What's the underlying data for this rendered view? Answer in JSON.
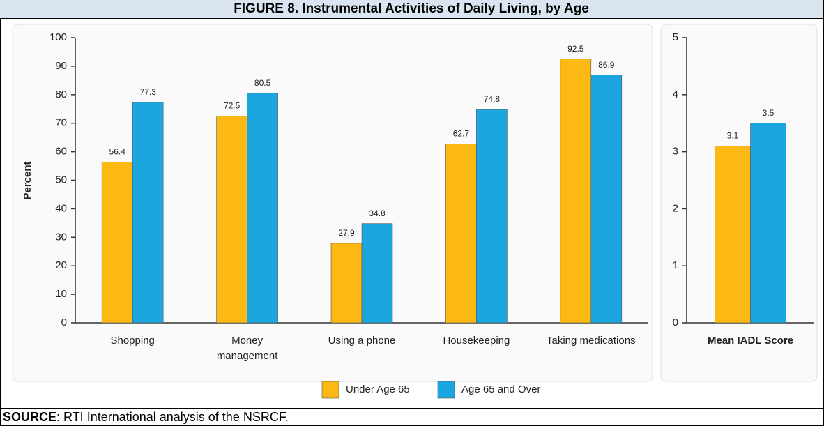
{
  "title": "FIGURE 8. Instrumental Activities of Daily Living, by Age",
  "source_label": "SOURCE",
  "source_text": ":  RTI International analysis of the NSRCF.",
  "chart_data": [
    {
      "type": "bar",
      "ylabel": "Percent",
      "categories": [
        "Shopping",
        "Money management",
        "Using a phone",
        "Housekeeping",
        "Taking medications"
      ],
      "series": [
        {
          "name": "Under Age 65",
          "color": "#fdb913",
          "values": [
            56.4,
            72.5,
            27.9,
            62.7,
            92.5
          ]
        },
        {
          "name": "Age 65 and Over",
          "color": "#1ba6e0",
          "values": [
            77.3,
            80.5,
            34.8,
            74.8,
            86.9
          ]
        }
      ],
      "ylim": [
        0,
        100
      ],
      "yticks": [
        0,
        10,
        20,
        30,
        40,
        50,
        60,
        70,
        80,
        90,
        100
      ],
      "legend": "bottom"
    },
    {
      "type": "bar",
      "categories": [
        "Mean IADL Score"
      ],
      "series": [
        {
          "color": "#fdb913",
          "values": [
            3.1
          ]
        },
        {
          "color": "#1ba6e0",
          "values": [
            3.5
          ]
        }
      ],
      "ylim": [
        0,
        5
      ],
      "yticks": [
        0,
        1,
        2,
        3,
        4,
        5
      ]
    }
  ]
}
